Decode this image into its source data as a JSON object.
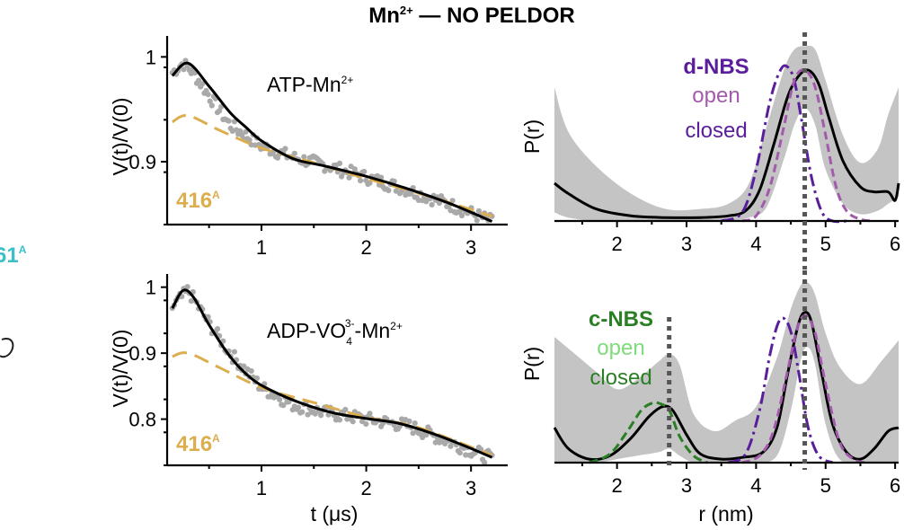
{
  "figure": {
    "title_main": "Mn",
    "title_sup": "2+",
    "title_rest": " — NO PELDOR",
    "edge_label": "61",
    "edge_label_sup": "A",
    "colors": {
      "data_dots": "#a9a9a9",
      "fit": "#000000",
      "background_fit": "#dcae4e",
      "uncertainty": "#c4c4c4",
      "dnbs": "#5a1d9c",
      "dnbs_open": "#a35aac",
      "cnbs": "#2a7f25",
      "cnbs_open": "#7fdc7a",
      "edge_label": "#3bbfc9"
    }
  },
  "chart_data": [
    {
      "id": "trace-top",
      "type": "scatter",
      "title": "",
      "annotation": "ATP-Mn",
      "annotation_sup": "2+",
      "sample_label": "416",
      "sample_label_sup": "A",
      "xlabel": "",
      "ylabel": "V(t)/V(0)",
      "xlim": [
        0.1,
        3.35
      ],
      "ylim": [
        0.84,
        1.02
      ],
      "xticks": [
        1,
        2,
        3
      ],
      "xtick_labels": [
        "1",
        "2",
        "3"
      ],
      "yticks": [
        1.0,
        0.9
      ],
      "ytick_labels": [
        "1",
        "0.9"
      ],
      "series": [
        {
          "name": "data",
          "style": "dots",
          "x": [
            0.15,
            0.25,
            0.35,
            0.5,
            0.7,
            1.0,
            1.3,
            1.6,
            2.0,
            2.4,
            2.8,
            3.2
          ],
          "y": [
            0.985,
            0.994,
            0.985,
            0.963,
            0.935,
            0.915,
            0.904,
            0.897,
            0.885,
            0.873,
            0.859,
            0.843
          ]
        },
        {
          "name": "fit",
          "style": "solid",
          "x": [
            0.15,
            0.3,
            0.5,
            0.7,
            0.85,
            1.0,
            1.3,
            1.6,
            2.0,
            2.4,
            2.8,
            3.2
          ],
          "y": [
            0.982,
            0.994,
            0.972,
            0.947,
            0.933,
            0.92,
            0.903,
            0.896,
            0.886,
            0.874,
            0.86,
            0.843
          ]
        },
        {
          "name": "background",
          "style": "dashed",
          "x": [
            0.15,
            0.3,
            0.6,
            1.0,
            1.5,
            2.0,
            2.5,
            3.2
          ],
          "y": [
            0.938,
            0.944,
            0.93,
            0.913,
            0.899,
            0.884,
            0.87,
            0.848
          ]
        }
      ]
    },
    {
      "id": "trace-bottom",
      "type": "scatter",
      "title": "",
      "annotation": "ADP-VO",
      "annotation_sub": "4",
      "annotation_sup": "3-",
      "annotation_tail": "-Mn",
      "annotation_tail_sup": "2+",
      "sample_label": "416",
      "sample_label_sup": "A",
      "xlabel": "t (μs)",
      "ylabel": "V(t)/V(0)",
      "xlim": [
        0.1,
        3.35
      ],
      "ylim": [
        0.73,
        1.02
      ],
      "xticks": [
        1,
        2,
        3
      ],
      "xtick_labels": [
        "1",
        "2",
        "3"
      ],
      "yticks": [
        1.0,
        0.9,
        0.8
      ],
      "ytick_labels": [
        "1",
        "0.9",
        "0.8"
      ],
      "series": [
        {
          "name": "data",
          "style": "dots",
          "x": [
            0.15,
            0.3,
            0.5,
            0.7,
            1.0,
            1.3,
            1.6,
            2.0,
            2.4,
            2.8,
            3.2
          ],
          "y": [
            0.97,
            0.995,
            0.945,
            0.9,
            0.848,
            0.822,
            0.81,
            0.8,
            0.79,
            0.765,
            0.74
          ]
        },
        {
          "name": "fit",
          "style": "solid",
          "x": [
            0.15,
            0.25,
            0.35,
            0.5,
            0.7,
            0.9,
            1.1,
            1.4,
            1.7,
            2.0,
            2.3,
            2.6,
            2.9,
            3.2
          ],
          "y": [
            0.968,
            0.995,
            0.985,
            0.943,
            0.895,
            0.862,
            0.843,
            0.823,
            0.809,
            0.801,
            0.794,
            0.78,
            0.762,
            0.742
          ]
        },
        {
          "name": "background",
          "style": "dashed",
          "x": [
            0.15,
            0.3,
            0.6,
            1.0,
            1.5,
            2.0,
            2.5,
            3.2
          ],
          "y": [
            0.895,
            0.9,
            0.878,
            0.848,
            0.825,
            0.803,
            0.787,
            0.745
          ]
        }
      ]
    },
    {
      "id": "distance-top",
      "type": "line",
      "title": "",
      "legend": [
        "d-NBS",
        "open",
        "closed"
      ],
      "xlabel": "",
      "ylabel": "P(r)",
      "xlim": [
        1.1,
        6.05
      ],
      "ylim": [
        0,
        1.08
      ],
      "xticks": [
        2,
        3,
        4,
        5,
        6
      ],
      "xtick_labels": [
        "2",
        "3",
        "4",
        "5",
        "6"
      ],
      "reference_lines": [
        4.7
      ],
      "band": {
        "x": [
          1.1,
          1.3,
          1.7,
          2.2,
          2.7,
          3.2,
          3.6,
          3.9,
          4.15,
          4.4,
          4.55,
          4.7,
          4.85,
          5.0,
          5.25,
          5.5,
          5.75,
          5.9,
          6.05
        ],
        "upper": [
          0.78,
          0.52,
          0.32,
          0.16,
          0.07,
          0.07,
          0.1,
          0.22,
          0.55,
          0.88,
          1.0,
          1.02,
          1.0,
          0.82,
          0.5,
          0.34,
          0.42,
          0.62,
          0.78
        ],
        "lower": [
          0.05,
          0.02,
          0.0,
          0.0,
          0.0,
          0.0,
          0.0,
          0.02,
          0.08,
          0.36,
          0.56,
          0.66,
          0.56,
          0.3,
          0.1,
          0.04,
          0.06,
          0.1,
          0.14
        ]
      },
      "series": [
        {
          "name": "fit",
          "style": "solid",
          "x": [
            1.1,
            1.3,
            1.7,
            2.2,
            2.7,
            3.2,
            3.6,
            3.85,
            4.05,
            4.25,
            4.45,
            4.6,
            4.75,
            4.9,
            5.05,
            5.25,
            5.5,
            5.7,
            5.9,
            6.0,
            6.05
          ],
          "y": [
            0.22,
            0.16,
            0.07,
            0.03,
            0.02,
            0.02,
            0.03,
            0.06,
            0.18,
            0.44,
            0.72,
            0.84,
            0.88,
            0.8,
            0.6,
            0.35,
            0.2,
            0.17,
            0.17,
            0.12,
            0.22
          ]
        },
        {
          "name": "closed",
          "style": "dashdot",
          "x": [
            3.5,
            3.8,
            4.0,
            4.2,
            4.35,
            4.45,
            4.55,
            4.65,
            4.8,
            4.95,
            5.1,
            5.3
          ],
          "y": [
            0.0,
            0.05,
            0.3,
            0.7,
            0.88,
            0.9,
            0.82,
            0.6,
            0.25,
            0.05,
            0.0,
            0.0
          ]
        },
        {
          "name": "open",
          "style": "dashed",
          "x": [
            3.8,
            4.0,
            4.2,
            4.4,
            4.55,
            4.7,
            4.85,
            5.0,
            5.15,
            5.3,
            5.5,
            5.7
          ],
          "y": [
            0.0,
            0.03,
            0.2,
            0.55,
            0.82,
            0.88,
            0.78,
            0.5,
            0.2,
            0.06,
            0.01,
            0.0
          ]
        }
      ]
    },
    {
      "id": "distance-bottom",
      "type": "line",
      "title": "",
      "legend": [
        "c-NBS",
        "open",
        "closed"
      ],
      "xlabel": "r (nm)",
      "ylabel": "P(r)",
      "xlim": [
        1.1,
        6.05
      ],
      "ylim": [
        0,
        1.08
      ],
      "xticks": [
        2,
        3,
        4,
        5,
        6
      ],
      "xtick_labels": [
        "2",
        "3",
        "4",
        "5",
        "6"
      ],
      "reference_lines": [
        2.75,
        4.7
      ],
      "band": {
        "x": [
          1.1,
          1.4,
          1.7,
          2.0,
          2.3,
          2.6,
          2.75,
          2.9,
          3.1,
          3.4,
          3.7,
          4.0,
          4.3,
          4.5,
          4.65,
          4.75,
          4.85,
          5.0,
          5.2,
          5.5,
          5.8,
          6.05
        ],
        "upper": [
          0.72,
          0.62,
          0.52,
          0.42,
          0.48,
          0.58,
          0.62,
          0.56,
          0.28,
          0.18,
          0.24,
          0.32,
          0.6,
          0.88,
          1.02,
          1.03,
          0.96,
          0.74,
          0.55,
          0.45,
          0.58,
          0.7
        ],
        "lower": [
          0.0,
          0.0,
          0.0,
          0.02,
          0.04,
          0.06,
          0.08,
          0.04,
          0.0,
          0.0,
          0.0,
          0.0,
          0.04,
          0.3,
          0.6,
          0.66,
          0.56,
          0.22,
          0.02,
          0.0,
          0.0,
          0.0
        ]
      },
      "series": [
        {
          "name": "fit",
          "style": "solid",
          "x": [
            1.1,
            1.3,
            1.6,
            1.9,
            2.2,
            2.45,
            2.65,
            2.8,
            3.0,
            3.2,
            3.5,
            3.8,
            4.1,
            4.3,
            4.45,
            4.6,
            4.7,
            4.8,
            4.95,
            5.1,
            5.3,
            5.5,
            5.7,
            5.9,
            6.05
          ],
          "y": [
            0.2,
            0.08,
            0.02,
            0.04,
            0.14,
            0.26,
            0.32,
            0.3,
            0.16,
            0.05,
            0.02,
            0.03,
            0.06,
            0.2,
            0.5,
            0.78,
            0.86,
            0.8,
            0.5,
            0.22,
            0.06,
            0.02,
            0.08,
            0.18,
            0.2
          ]
        },
        {
          "name": "c-NBS closed",
          "style": "dashed_green",
          "x": [
            1.6,
            1.9,
            2.15,
            2.35,
            2.5,
            2.6,
            2.75,
            2.9,
            3.1,
            3.3
          ],
          "y": [
            0.0,
            0.05,
            0.18,
            0.3,
            0.34,
            0.34,
            0.3,
            0.15,
            0.04,
            0.0
          ]
        },
        {
          "name": "d-NBS closed",
          "style": "dashdot",
          "x": [
            3.6,
            3.85,
            4.05,
            4.2,
            4.32,
            4.42,
            4.52,
            4.62,
            4.75,
            4.9,
            5.1
          ],
          "y": [
            0.0,
            0.05,
            0.3,
            0.62,
            0.8,
            0.82,
            0.72,
            0.5,
            0.2,
            0.04,
            0.0
          ]
        },
        {
          "name": "d-NBS open",
          "style": "dashed",
          "x": [
            3.8,
            4.05,
            4.25,
            4.45,
            4.6,
            4.72,
            4.85,
            5.0,
            5.2,
            5.4,
            5.6
          ],
          "y": [
            0.0,
            0.04,
            0.18,
            0.52,
            0.78,
            0.84,
            0.74,
            0.45,
            0.12,
            0.02,
            0.0
          ]
        }
      ]
    }
  ]
}
